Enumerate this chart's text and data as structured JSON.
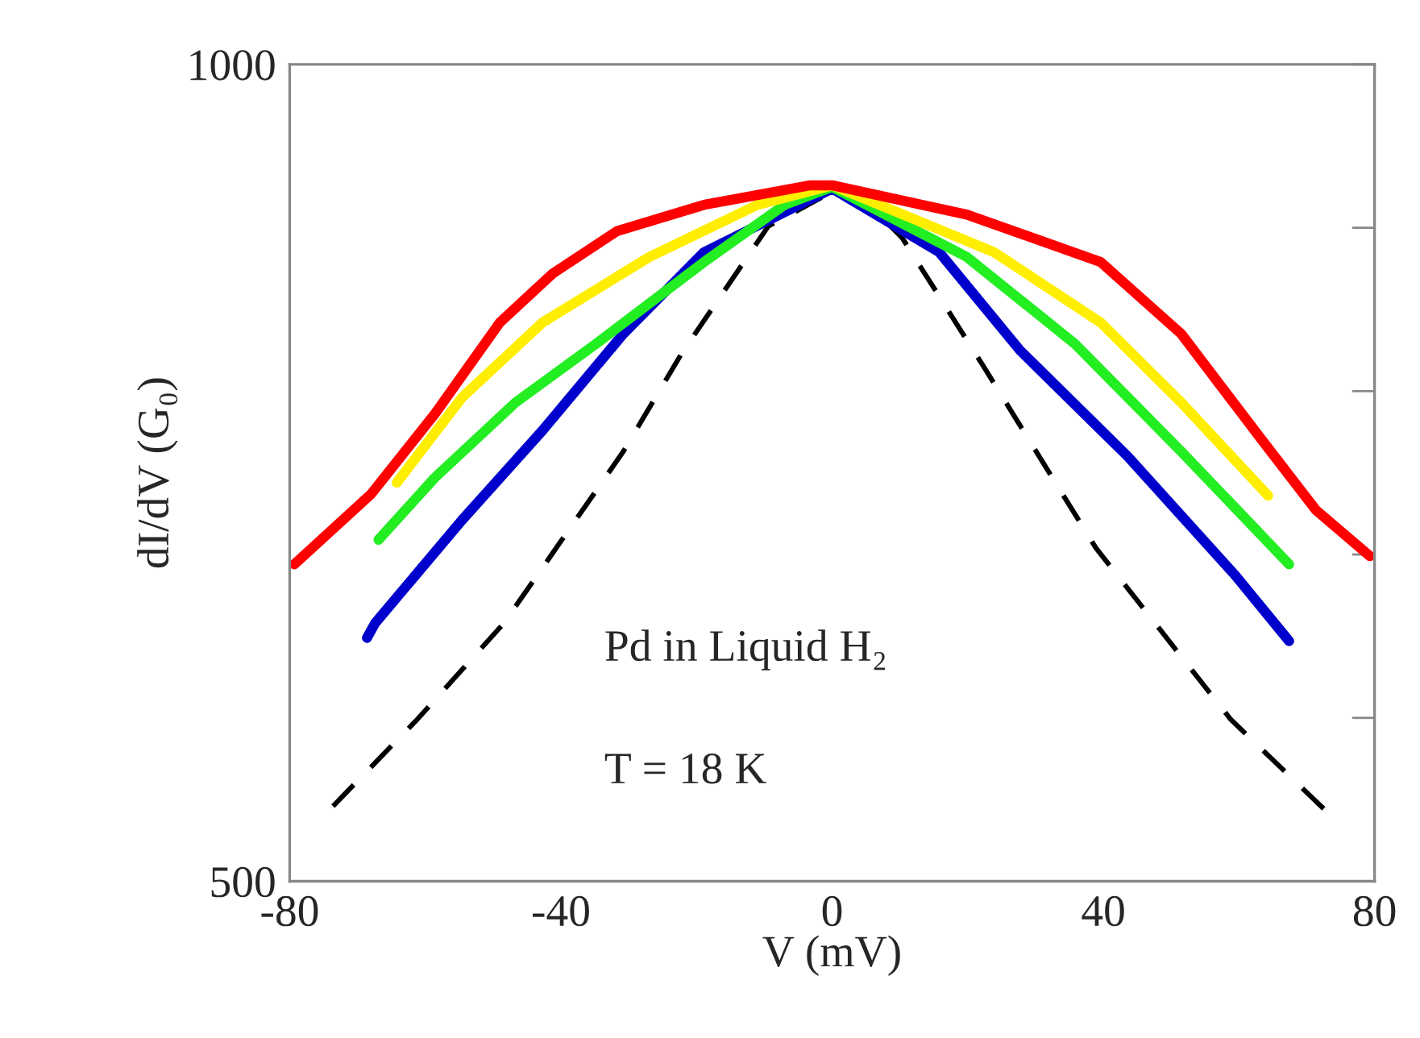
{
  "chart_data": {
    "type": "line",
    "xlabel": "V (mV)",
    "ylabel": "dI/dV (G₀)",
    "xlim": [
      -80,
      80
    ],
    "xticks": [
      -80,
      -40,
      0,
      40,
      80
    ],
    "ylim": [
      500,
      1000
    ],
    "yticks": [
      500,
      {
        "value": 600,
        "label": null
      },
      {
        "value": 700,
        "label": null
      },
      {
        "value": 800,
        "label": null
      },
      {
        "value": 900,
        "label": null
      },
      1000
    ],
    "grid": false,
    "legend": false,
    "annotations": [
      "Pd in Liquid H₂",
      "T = 18 K"
    ],
    "series": [
      {
        "color": "#000000",
        "line_style": "dashed",
        "x": [
          -73.6,
          -61.2,
          -48.4,
          -30.8,
          -22.2,
          -9.4,
          0,
          4,
          10.3,
          22.2,
          38.9,
          58.8,
          73.1
        ],
        "values": [
          546,
          599,
          658,
          763,
          823,
          901,
          922,
          920,
          894,
          816,
          704,
          599,
          542
        ]
      },
      {
        "color": "#0000cc",
        "x": [
          -68.6,
          -67.4,
          -54.6,
          -42.7,
          -30.8,
          -18.9,
          0,
          15.8,
          27.7,
          43.6,
          59.5,
          67.4
        ],
        "values": [
          649,
          658,
          721,
          776,
          835,
          885,
          924,
          885,
          825,
          760,
          687,
          647
        ]
      },
      {
        "color": "#22ee22",
        "x": [
          -66.9,
          -58.6,
          -46.7,
          -34.8,
          -18.9,
          -7,
          0,
          19.9,
          35.8,
          51.5,
          67.4
        ],
        "values": [
          709,
          747,
          793,
          829,
          879,
          914,
          925,
          882,
          829,
          763,
          694
        ]
      },
      {
        "color": "#ffee00",
        "x": [
          -64.2,
          -54.6,
          -42.7,
          -27,
          -11,
          0,
          23.9,
          39.6,
          51.5,
          64.3
        ],
        "values": [
          744,
          796,
          842,
          882,
          914,
          926,
          885,
          842,
          793,
          736
        ]
      },
      {
        "color": "#ff0000",
        "x": [
          -79.3,
          -68,
          -58.6,
          -49,
          -41.2,
          -31.7,
          -18.9,
          -3.2,
          0,
          19.9,
          39.6,
          51.5,
          63.4,
          71.4,
          79.3
        ],
        "values": [
          694,
          737,
          786,
          842,
          872,
          898,
          914,
          926,
          926,
          908,
          879,
          835,
          770,
          727,
          699
        ]
      }
    ]
  }
}
